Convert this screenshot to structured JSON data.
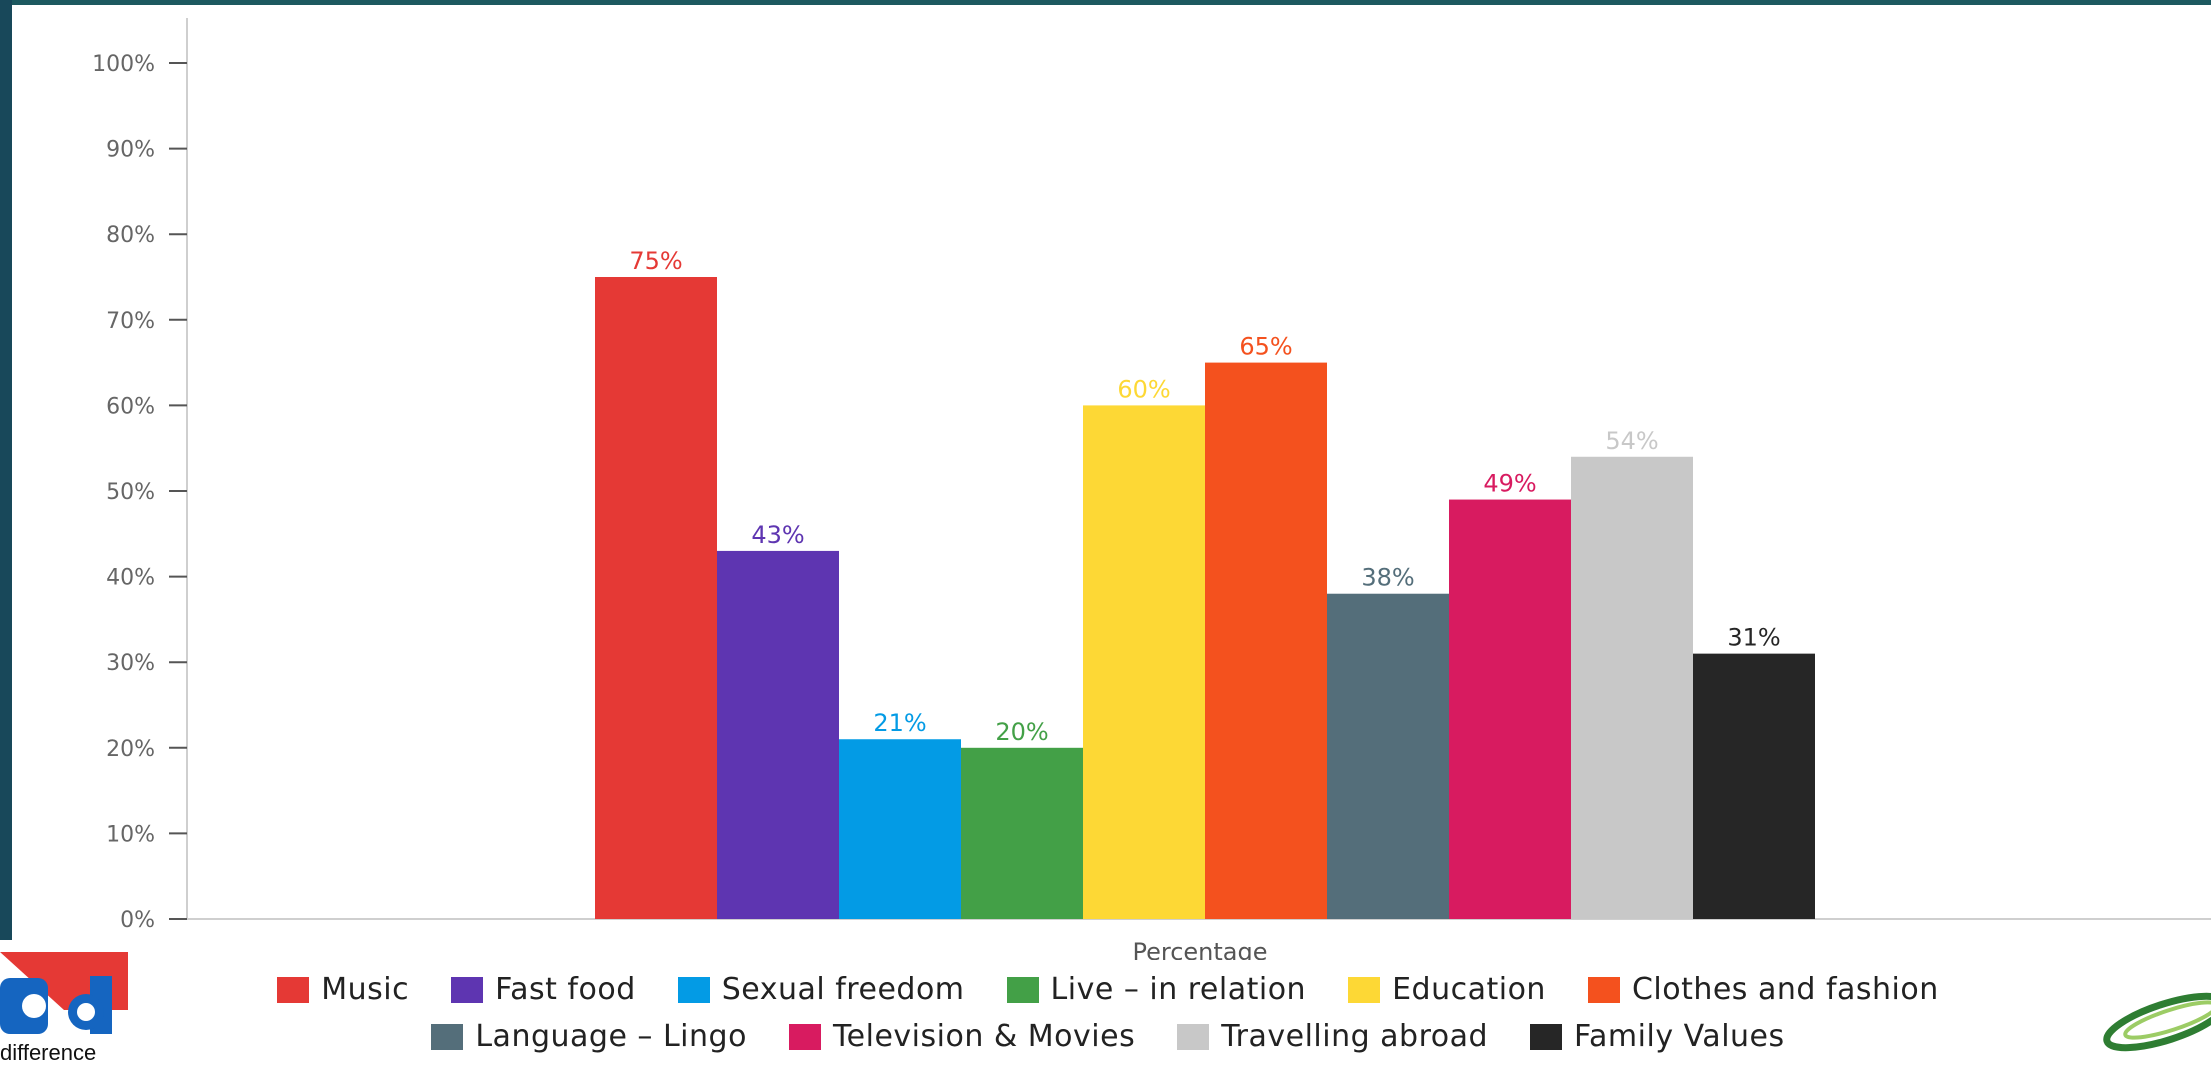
{
  "chart_data": {
    "type": "bar",
    "categories": [
      "Music",
      "Fast food",
      "Sexual freedom",
      "Live – in relation",
      "Education",
      "Clothes and fashion",
      "Language – Lingo",
      "Television & Movies",
      "Travelling abroad",
      "Family Values"
    ],
    "values": [
      75,
      43,
      21,
      20,
      60,
      65,
      38,
      49,
      54,
      31
    ],
    "data_labels": [
      "75%",
      "43%",
      "21%",
      "20%",
      "60%",
      "65%",
      "38%",
      "49%",
      "54%",
      "31%"
    ],
    "colors": [
      "#e53935",
      "#5e35b1",
      "#039be5",
      "#43a047",
      "#fdd835",
      "#f4511e",
      "#546e7a",
      "#d81b60",
      "#c8c8c8",
      "#262626"
    ],
    "xlabel": "Percentage",
    "ylabel": "",
    "ylim": [
      0,
      100
    ],
    "yticks": [
      "0%",
      "10%",
      "20%",
      "30%",
      "40%",
      "50%",
      "60%",
      "70%",
      "80%",
      "90%",
      "100%"
    ],
    "legend_position": "bottom",
    "grid": false
  },
  "logos": {
    "left_logo_icon": "letter-logo-icon",
    "left_caption": "difference",
    "right_logo_icon": "swoosh-logo-icon"
  }
}
